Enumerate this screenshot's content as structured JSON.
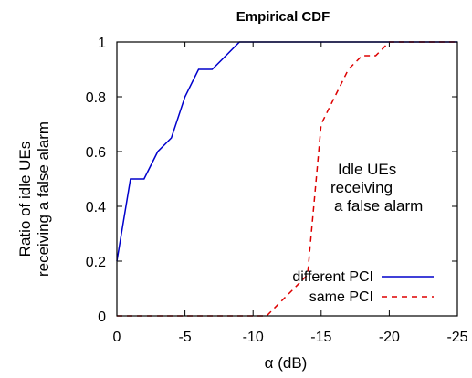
{
  "chart_data": {
    "type": "line",
    "title": "Empirical CDF",
    "xlabel": "α (dB)",
    "ylabel": [
      "Ratio of idle UEs",
      "receiving a false alarm"
    ],
    "xlim": [
      0,
      -25
    ],
    "ylim": [
      0,
      1
    ],
    "xticks": [
      0,
      -5,
      -10,
      -15,
      -20,
      -25
    ],
    "yticks": [
      0,
      0.2,
      0.4,
      0.6,
      0.8,
      1
    ],
    "xtick_labels": [
      "0",
      "-5",
      "-10",
      "-15",
      "-20",
      "-25"
    ],
    "ytick_labels": [
      "0",
      "0.2",
      "0.4",
      "0.6",
      "0.8",
      "1"
    ],
    "grid": false,
    "legend_position": "bottom-right",
    "annotation": [
      "Idle UEs",
      "receiving",
      "a false alarm"
    ],
    "series": [
      {
        "name": "different PCI",
        "color": "#0000cc",
        "dash": "solid",
        "x": [
          0,
          -1,
          -2,
          -3,
          -4,
          -5,
          -6,
          -7,
          -8,
          -9,
          -25
        ],
        "y": [
          0.2,
          0.5,
          0.5,
          0.6,
          0.65,
          0.8,
          0.9,
          0.9,
          0.95,
          1.0,
          1.0
        ]
      },
      {
        "name": "same PCI",
        "color": "#dd0000",
        "dash": "dashed",
        "x": [
          0,
          -11,
          -12,
          -13,
          -14,
          -15,
          -16,
          -17,
          -18,
          -19,
          -20,
          -25
        ],
        "y": [
          0,
          0,
          0.05,
          0.1,
          0.15,
          0.7,
          0.8,
          0.9,
          0.95,
          0.95,
          1.0,
          1.0
        ]
      }
    ]
  }
}
